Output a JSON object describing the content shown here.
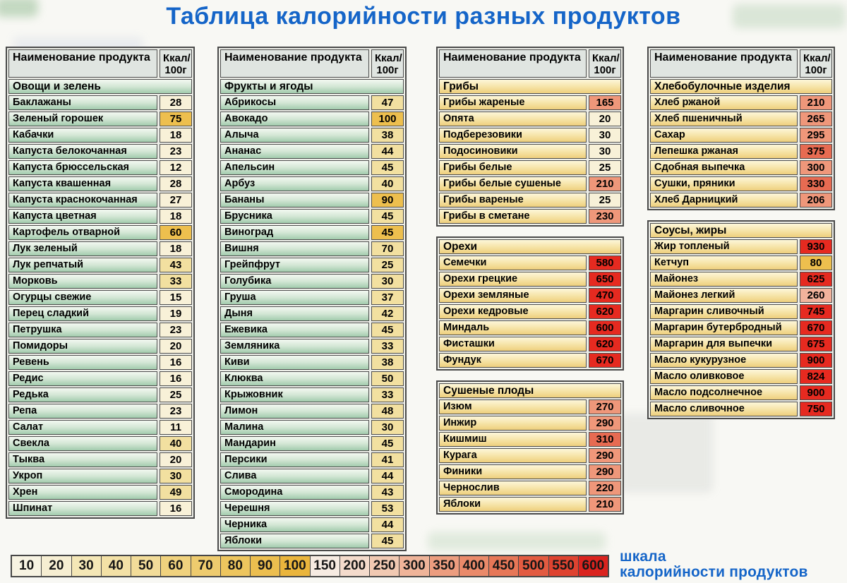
{
  "title": "Таблица калорийности разных продуктов",
  "header": {
    "name": "Наименование\nпродукта",
    "kcal": "Ккал/\n100г"
  },
  "colors": {
    "accent_blue": "#1565c8",
    "header_bg": "#e0e5e1",
    "tones": {
      "c": "#f8f1d8",
      "y1": "#f2e0a0",
      "y2": "#edbf4e",
      "s0": "#f2b39c",
      "s1": "#ef977a",
      "s2": "#e76b52",
      "r": "#e62a20"
    }
  },
  "columns": [
    {
      "tables": [
        {
          "theme": "green",
          "has_header": true,
          "section": "Овощи и зелень",
          "rows": [
            {
              "name": "Баклажаны",
              "value": "28",
              "tone": "c"
            },
            {
              "name": "Зеленый горошек",
              "value": "75",
              "tone": "y2"
            },
            {
              "name": "Кабачки",
              "value": "18",
              "tone": "c"
            },
            {
              "name": "Капуста белокочанная",
              "value": "23",
              "tone": "c"
            },
            {
              "name": "Капуста брюссельская",
              "value": "12",
              "tone": "c"
            },
            {
              "name": "Капуста квашенная",
              "value": "28",
              "tone": "c"
            },
            {
              "name": "Капуста краснокочанная",
              "value": "27",
              "tone": "c"
            },
            {
              "name": "Капуста цветная",
              "value": "18",
              "tone": "c"
            },
            {
              "name": "Картофель отварной",
              "value": "60",
              "tone": "y2"
            },
            {
              "name": "Лук зеленый",
              "value": "18",
              "tone": "c"
            },
            {
              "name": "Лук репчатый",
              "value": "43",
              "tone": "y1"
            },
            {
              "name": "Морковь",
              "value": "33",
              "tone": "y1"
            },
            {
              "name": "Огурцы свежие",
              "value": "15",
              "tone": "c"
            },
            {
              "name": "Перец сладкий",
              "value": "19",
              "tone": "c"
            },
            {
              "name": "Петрушка",
              "value": "23",
              "tone": "c"
            },
            {
              "name": "Помидоры",
              "value": "20",
              "tone": "c"
            },
            {
              "name": "Ревень",
              "value": "16",
              "tone": "c"
            },
            {
              "name": "Редис",
              "value": "16",
              "tone": "c"
            },
            {
              "name": "Редька",
              "value": "25",
              "tone": "c"
            },
            {
              "name": "Репа",
              "value": "23",
              "tone": "c"
            },
            {
              "name": "Салат",
              "value": "11",
              "tone": "c"
            },
            {
              "name": "Свекла",
              "value": "40",
              "tone": "y1"
            },
            {
              "name": "Тыква",
              "value": "20",
              "tone": "c"
            },
            {
              "name": "Укроп",
              "value": "30",
              "tone": "y1"
            },
            {
              "name": "Хрен",
              "value": "49",
              "tone": "y1"
            },
            {
              "name": "Шпинат",
              "value": "16",
              "tone": "c"
            }
          ]
        }
      ]
    },
    {
      "tables": [
        {
          "theme": "green",
          "has_header": true,
          "section": "Фрукты и ягоды",
          "rows": [
            {
              "name": "Абрикосы",
              "value": "47",
              "tone": "y1"
            },
            {
              "name": "Авокадо",
              "value": "100",
              "tone": "y2"
            },
            {
              "name": "Алыча",
              "value": "38",
              "tone": "y1"
            },
            {
              "name": "Ананас",
              "value": "44",
              "tone": "y1"
            },
            {
              "name": "Апельсин",
              "value": "45",
              "tone": "y1"
            },
            {
              "name": "Арбуз",
              "value": "40",
              "tone": "y1"
            },
            {
              "name": "Бананы",
              "value": "90",
              "tone": "y2"
            },
            {
              "name": "Брусника",
              "value": "45",
              "tone": "y1"
            },
            {
              "name": "Виноград",
              "value": "45",
              "tone": "y2"
            },
            {
              "name": "Вишня",
              "value": "70",
              "tone": "y1"
            },
            {
              "name": "Грейпфрут",
              "value": "25",
              "tone": "y1"
            },
            {
              "name": "Голубика",
              "value": "30",
              "tone": "y1"
            },
            {
              "name": "Груша",
              "value": "37",
              "tone": "y1"
            },
            {
              "name": "Дыня",
              "value": "42",
              "tone": "y1"
            },
            {
              "name": "Ежевика",
              "value": "45",
              "tone": "y1"
            },
            {
              "name": "Земляника",
              "value": "33",
              "tone": "y1"
            },
            {
              "name": "Киви",
              "value": "38",
              "tone": "y1"
            },
            {
              "name": "Клюква",
              "value": "50",
              "tone": "y1"
            },
            {
              "name": "Крыжовник",
              "value": "33",
              "tone": "y1"
            },
            {
              "name": "Лимон",
              "value": "48",
              "tone": "y1"
            },
            {
              "name": "Малина",
              "value": "30",
              "tone": "y1"
            },
            {
              "name": "Мандарин",
              "value": "45",
              "tone": "y1"
            },
            {
              "name": "Персики",
              "value": "41",
              "tone": "y1"
            },
            {
              "name": "Слива",
              "value": "44",
              "tone": "y1"
            },
            {
              "name": "Смородина",
              "value": "43",
              "tone": "y1"
            },
            {
              "name": "Черешня",
              "value": "53",
              "tone": "y1"
            },
            {
              "name": "Черника",
              "value": "44",
              "tone": "y1"
            },
            {
              "name": "Яблоки",
              "value": "45",
              "tone": "y1"
            }
          ]
        }
      ]
    },
    {
      "tables": [
        {
          "theme": "yellow",
          "has_header": true,
          "section": "Грибы",
          "rows": [
            {
              "name": "Грибы жареные",
              "value": "165",
              "tone": "s1"
            },
            {
              "name": "Опята",
              "value": "20",
              "tone": "c"
            },
            {
              "name": "Подберезовики",
              "value": "30",
              "tone": "c"
            },
            {
              "name": "Подосиновики",
              "value": "30",
              "tone": "c"
            },
            {
              "name": "Грибы белые",
              "value": "25",
              "tone": "c"
            },
            {
              "name": "Грибы белые сушеные",
              "value": "210",
              "tone": "s1"
            },
            {
              "name": "Грибы вареные",
              "value": "25",
              "tone": "c"
            },
            {
              "name": "Грибы в сметане",
              "value": "230",
              "tone": "s1"
            }
          ]
        },
        {
          "theme": "yellow",
          "has_header": false,
          "section": "Орехи",
          "rows": [
            {
              "name": "Семечки",
              "value": "580",
              "tone": "r"
            },
            {
              "name": "Орехи грецкие",
              "value": "650",
              "tone": "r"
            },
            {
              "name": "Орехи земляные",
              "value": "470",
              "tone": "r"
            },
            {
              "name": "Орехи кедровые",
              "value": "620",
              "tone": "r"
            },
            {
              "name": "Миндаль",
              "value": "600",
              "tone": "r"
            },
            {
              "name": "Фисташки",
              "value": "620",
              "tone": "r"
            },
            {
              "name": "Фундук",
              "value": "670",
              "tone": "r"
            }
          ]
        },
        {
          "theme": "yellow",
          "has_header": false,
          "section": "Сушеные плоды",
          "rows": [
            {
              "name": "Изюм",
              "value": "270",
              "tone": "s1"
            },
            {
              "name": "Инжир",
              "value": "290",
              "tone": "s1"
            },
            {
              "name": "Кишмиш",
              "value": "310",
              "tone": "s2"
            },
            {
              "name": "Курага",
              "value": "290",
              "tone": "s1"
            },
            {
              "name": "Финики",
              "value": "290",
              "tone": "s1"
            },
            {
              "name": "Чернослив",
              "value": "220",
              "tone": "s1"
            },
            {
              "name": "Яблоки",
              "value": "210",
              "tone": "s1"
            }
          ]
        }
      ]
    },
    {
      "tables": [
        {
          "theme": "yellow",
          "has_header": true,
          "section": "Хлебобулочные изделия",
          "rows": [
            {
              "name": "Хлеб ржаной",
              "value": "210",
              "tone": "s1"
            },
            {
              "name": "Хлеб пшеничный",
              "value": "265",
              "tone": "s1"
            },
            {
              "name": "Сахар",
              "value": "295",
              "tone": "s1"
            },
            {
              "name": "Лепешка ржаная",
              "value": "375",
              "tone": "s2"
            },
            {
              "name": "Сдобная выпечка",
              "value": "300",
              "tone": "s1"
            },
            {
              "name": "Сушки, пряники",
              "value": "330",
              "tone": "s2"
            },
            {
              "name": "Хлеб Дарницкий",
              "value": "206",
              "tone": "s1"
            }
          ]
        },
        {
          "theme": "yellow",
          "has_header": false,
          "section": "Соусы, жиры",
          "rows": [
            {
              "name": "Жир топленый",
              "value": "930",
              "tone": "r"
            },
            {
              "name": "Кетчуп",
              "value": "80",
              "tone": "y2"
            },
            {
              "name": "Майонез",
              "value": "625",
              "tone": "r"
            },
            {
              "name": "Майонез легкий",
              "value": "260",
              "tone": "s0"
            },
            {
              "name": "Маргарин сливочный",
              "value": "745",
              "tone": "r"
            },
            {
              "name": "Маргарин бутербродный",
              "value": "670",
              "tone": "r"
            },
            {
              "name": "Маргарин для выпечки",
              "value": "675",
              "tone": "r"
            },
            {
              "name": "Масло кукурузное",
              "value": "900",
              "tone": "r"
            },
            {
              "name": "Масло оливковое",
              "value": "824",
              "tone": "r"
            },
            {
              "name": "Масло подсолнечное",
              "value": "900",
              "tone": "r"
            },
            {
              "name": "Масло сливочное",
              "value": "750",
              "tone": "r"
            }
          ]
        }
      ]
    }
  ],
  "scale": {
    "caption": "шкала\nкалорийности продуктов",
    "cells": [
      {
        "label": "10",
        "color": "#f7f3e2"
      },
      {
        "label": "20",
        "color": "#f6eed2"
      },
      {
        "label": "30",
        "color": "#f4e7b6"
      },
      {
        "label": "40",
        "color": "#f3e1a6"
      },
      {
        "label": "50",
        "color": "#f2dc99"
      },
      {
        "label": "60",
        "color": "#f0d27e"
      },
      {
        "label": "70",
        "color": "#eecb6e"
      },
      {
        "label": "80",
        "color": "#edc55e"
      },
      {
        "label": "90",
        "color": "#ecbe4f"
      },
      {
        "label": "100",
        "color": "#eab53c"
      },
      {
        "label": "150",
        "color": "#f6ebe2"
      },
      {
        "label": "200",
        "color": "#f4dbcc"
      },
      {
        "label": "250",
        "color": "#f1c9b2"
      },
      {
        "label": "300",
        "color": "#efb499"
      },
      {
        "label": "350",
        "color": "#ec9d7f"
      },
      {
        "label": "400",
        "color": "#ea8a6a"
      },
      {
        "label": "450",
        "color": "#e77757"
      },
      {
        "label": "500",
        "color": "#e35b41"
      },
      {
        "label": "550",
        "color": "#df4330"
      },
      {
        "label": "600",
        "color": "#da231e"
      }
    ]
  }
}
